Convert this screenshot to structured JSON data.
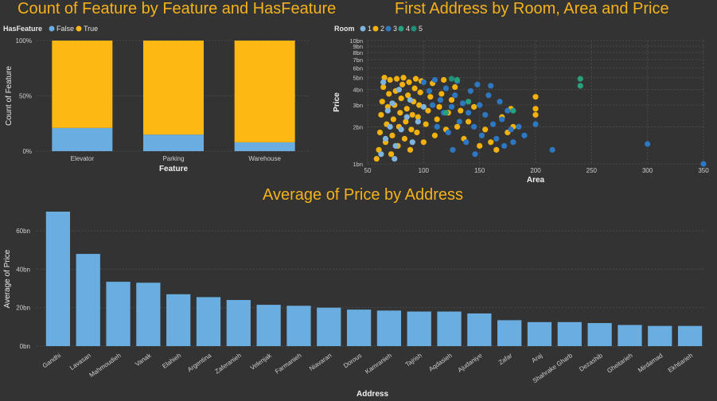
{
  "colors": {
    "background": "#333333",
    "title": "#f5b21a",
    "false_blue": "#6aade0",
    "true_yellow": "#fdb813",
    "room1": "#7fb4de",
    "room2": "#f2b10c",
    "room3": "#2e78c2",
    "room4": "#27a07e",
    "room5": "#20907a",
    "grid": "#4a4a4a",
    "axis_text": "#cfcfcf"
  },
  "chart_data": [
    {
      "type": "bar",
      "stacked": "100%",
      "title": "Count of Feature by Feature and HasFeature",
      "xlabel": "Feature",
      "ylabel": "Count of Feature",
      "legend_title": "HasFeature",
      "legend_position": "top-left",
      "categories": [
        "Elevator",
        "Parking",
        "Warehouse"
      ],
      "series": [
        {
          "name": "False",
          "values": [
            21,
            15,
            8
          ]
        },
        {
          "name": "True",
          "values": [
            79,
            85,
            92
          ]
        }
      ],
      "yticks": [
        "0%",
        "50%",
        "100%"
      ],
      "ylim": [
        0,
        100
      ],
      "grid": true
    },
    {
      "type": "scatter",
      "title": "First Address by Room, Area and Price",
      "xlabel": "Area",
      "ylabel": "Price",
      "legend_title": "Room",
      "legend_position": "top-left",
      "log_y": true,
      "xlim": [
        50,
        350
      ],
      "ylim": [
        1,
        10
      ],
      "xticks": [
        "50",
        "100",
        "150",
        "200",
        "250",
        "300",
        "350"
      ],
      "yticks": [
        "1bn",
        "2bn",
        "3bn",
        "4bn",
        "5bn",
        "6bn",
        "7bn",
        "8bn",
        "9bn",
        "10bn"
      ],
      "legend": [
        "1",
        "2",
        "3",
        "4",
        "5"
      ],
      "series": [
        {
          "name": "1",
          "points": [
            [
              62,
              1.2
            ],
            [
              66,
              1.6
            ],
            [
              70,
              2.0
            ],
            [
              75,
              1.4
            ],
            [
              80,
              1.9
            ],
            [
              85,
              2.4
            ],
            [
              72,
              3.1
            ],
            [
              90,
              1.5
            ],
            [
              68,
              2.7
            ],
            [
              95,
              2.2
            ],
            [
              78,
              4.0
            ],
            [
              88,
              3.3
            ],
            [
              64,
              4.6
            ],
            [
              100,
              2.9
            ],
            [
              74,
              1.1
            ]
          ]
        },
        {
          "name": "2",
          "points": [
            [
              58,
              1.1
            ],
            [
              60,
              1.3
            ],
            [
              61,
              1.8
            ],
            [
              62,
              2.5
            ],
            [
              63,
              3.2
            ],
            [
              64,
              4.2
            ],
            [
              65,
              5.0
            ],
            [
              66,
              1.5
            ],
            [
              67,
              2.1
            ],
            [
              68,
              2.9
            ],
            [
              69,
              3.7
            ],
            [
              70,
              4.8
            ],
            [
              71,
              1.2
            ],
            [
              72,
              1.7
            ],
            [
              73,
              2.3
            ],
            [
              74,
              3.0
            ],
            [
              75,
              3.9
            ],
            [
              76,
              4.9
            ],
            [
              77,
              1.4
            ],
            [
              78,
              2.0
            ],
            [
              79,
              2.6
            ],
            [
              80,
              3.4
            ],
            [
              81,
              4.4
            ],
            [
              82,
              5.0
            ],
            [
              83,
              1.6
            ],
            [
              84,
              2.2
            ],
            [
              85,
              2.8
            ],
            [
              86,
              3.6
            ],
            [
              87,
              4.6
            ],
            [
              88,
              1.3
            ],
            [
              89,
              1.9
            ],
            [
              90,
              2.5
            ],
            [
              91,
              3.2
            ],
            [
              92,
              4.1
            ],
            [
              93,
              4.9
            ],
            [
              94,
              1.8
            ],
            [
              95,
              2.4
            ],
            [
              96,
              3.0
            ],
            [
              97,
              3.8
            ],
            [
              98,
              4.7
            ],
            [
              100,
              1.5
            ],
            [
              102,
              2.1
            ],
            [
              104,
              2.7
            ],
            [
              106,
              3.5
            ],
            [
              108,
              4.5
            ],
            [
              110,
              1.7
            ],
            [
              112,
              2.3
            ],
            [
              114,
              2.9
            ],
            [
              116,
              3.7
            ],
            [
              118,
              4.8
            ],
            [
              120,
              1.9
            ],
            [
              122,
              2.6
            ],
            [
              125,
              3.3
            ],
            [
              128,
              4.2
            ],
            [
              130,
              2.0
            ],
            [
              133,
              2.7
            ],
            [
              136,
              1.6
            ],
            [
              140,
              2.2
            ],
            [
              145,
              2.9
            ],
            [
              150,
              1.4
            ],
            [
              155,
              1.9
            ],
            [
              160,
              1.5
            ],
            [
              165,
              1.3
            ],
            [
              170,
              2.4
            ],
            [
              175,
              1.8
            ],
            [
              180,
              2.0
            ],
            [
              200,
              2.5
            ],
            [
              200,
              2.8
            ],
            [
              200,
              3.5
            ],
            [
              178,
              2.8
            ]
          ]
        },
        {
          "name": "3",
          "points": [
            [
              100,
              4.6
            ],
            [
              105,
              3.9
            ],
            [
              110,
              4.8
            ],
            [
              115,
              3.3
            ],
            [
              118,
              2.6
            ],
            [
              120,
              4.1
            ],
            [
              122,
              1.8
            ],
            [
              125,
              2.9
            ],
            [
              128,
              3.6
            ],
            [
              130,
              4.7
            ],
            [
              132,
              2.2
            ],
            [
              135,
              3.1
            ],
            [
              138,
              1.5
            ],
            [
              140,
              2.6
            ],
            [
              142,
              3.9
            ],
            [
              145,
              2.0
            ],
            [
              148,
              4.4
            ],
            [
              150,
              3.0
            ],
            [
              152,
              1.7
            ],
            [
              155,
              2.5
            ],
            [
              158,
              3.6
            ],
            [
              160,
              4.3
            ],
            [
              162,
              2.1
            ],
            [
              165,
              1.6
            ],
            [
              168,
              3.2
            ],
            [
              170,
              2.3
            ],
            [
              172,
              1.4
            ],
            [
              175,
              2.7
            ],
            [
              178,
              1.9
            ],
            [
              180,
              1.5
            ],
            [
              185,
              2.0
            ],
            [
              190,
              1.7
            ],
            [
              200,
              2.1
            ],
            [
              215,
              1.3
            ],
            [
              300,
              1.45
            ],
            [
              350,
              1.0
            ],
            [
              112,
              2.0
            ],
            [
              108,
              3.0
            ],
            [
              126,
              1.3
            ],
            [
              146,
              1.2
            ]
          ]
        },
        {
          "name": "4",
          "points": [
            [
              130,
              4.8
            ],
            [
              120,
              2.6
            ],
            [
              140,
              3.2
            ],
            [
              240,
              4.3
            ],
            [
              240,
              4.9
            ],
            [
              180,
              2.7
            ]
          ]
        },
        {
          "name": "5",
          "points": [
            [
              125,
              4.9
            ]
          ]
        }
      ],
      "grid": true
    },
    {
      "type": "bar",
      "title": "Average of Price by Address",
      "xlabel": "Address",
      "ylabel": "Average of Price",
      "categories": [
        "Gandhi",
        "Lavasan",
        "Mahmoudieh",
        "Vanak",
        "Elahieh",
        "Argentina",
        "Zaferanieh",
        "Velenjak",
        "Farmanieh",
        "Niavaran",
        "Dorous",
        "Kamranieh",
        "Tajrish",
        "Aqdasieh",
        "Ajudaniye",
        "Zafar",
        "Araj",
        "Shahrake Gharb",
        "Dezashib",
        "Gheitarieh",
        "Mirdamad",
        "Ekhtiarieh"
      ],
      "values": [
        70,
        48,
        33.5,
        33,
        27,
        25.5,
        24,
        21.5,
        21,
        20,
        19,
        18.5,
        18,
        18,
        17,
        13.5,
        12.5,
        12.5,
        12,
        11,
        10.5,
        10.5
      ],
      "ylim": [
        0,
        70
      ],
      "yticks": [
        "0bn",
        "20bn",
        "40bn",
        "60bn"
      ],
      "grid": true
    }
  ]
}
